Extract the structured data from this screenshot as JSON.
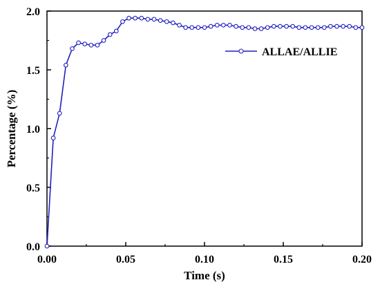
{
  "chart_data": {
    "type": "line",
    "xlabel": "Time (s)",
    "ylabel": "Percentage (%)",
    "xlim": [
      0,
      0.2
    ],
    "ylim": [
      0,
      2.0
    ],
    "xticks": [
      0.0,
      0.05,
      0.1,
      0.15,
      0.2
    ],
    "xtick_labels": [
      "0.00",
      "0.05",
      "0.10",
      "0.15",
      "0.20"
    ],
    "yticks": [
      0.0,
      0.5,
      1.0,
      1.5,
      2.0
    ],
    "ytick_labels": [
      "0.0",
      "0.5",
      "1.0",
      "1.5",
      "2.0"
    ],
    "grid": false,
    "legend_position": "top-right",
    "series": [
      {
        "name": "ALLAE/ALLIE",
        "color": "#1f1fbf",
        "marker": "open-circle",
        "x": [
          0.0,
          0.004,
          0.008,
          0.012,
          0.016,
          0.02,
          0.024,
          0.028,
          0.032,
          0.036,
          0.04,
          0.044,
          0.048,
          0.052,
          0.056,
          0.06,
          0.064,
          0.068,
          0.072,
          0.076,
          0.08,
          0.084,
          0.088,
          0.092,
          0.096,
          0.1,
          0.104,
          0.108,
          0.112,
          0.116,
          0.12,
          0.124,
          0.128,
          0.132,
          0.136,
          0.14,
          0.144,
          0.148,
          0.152,
          0.156,
          0.16,
          0.164,
          0.168,
          0.172,
          0.176,
          0.18,
          0.184,
          0.188,
          0.192,
          0.196,
          0.2
        ],
        "y": [
          0.0,
          0.92,
          1.13,
          1.54,
          1.68,
          1.73,
          1.72,
          1.71,
          1.71,
          1.75,
          1.8,
          1.83,
          1.91,
          1.94,
          1.94,
          1.94,
          1.93,
          1.93,
          1.92,
          1.91,
          1.9,
          1.88,
          1.86,
          1.86,
          1.86,
          1.86,
          1.87,
          1.88,
          1.88,
          1.88,
          1.87,
          1.86,
          1.86,
          1.85,
          1.85,
          1.86,
          1.87,
          1.87,
          1.87,
          1.87,
          1.86,
          1.86,
          1.86,
          1.86,
          1.86,
          1.87,
          1.87,
          1.87,
          1.87,
          1.86,
          1.86
        ]
      }
    ]
  }
}
